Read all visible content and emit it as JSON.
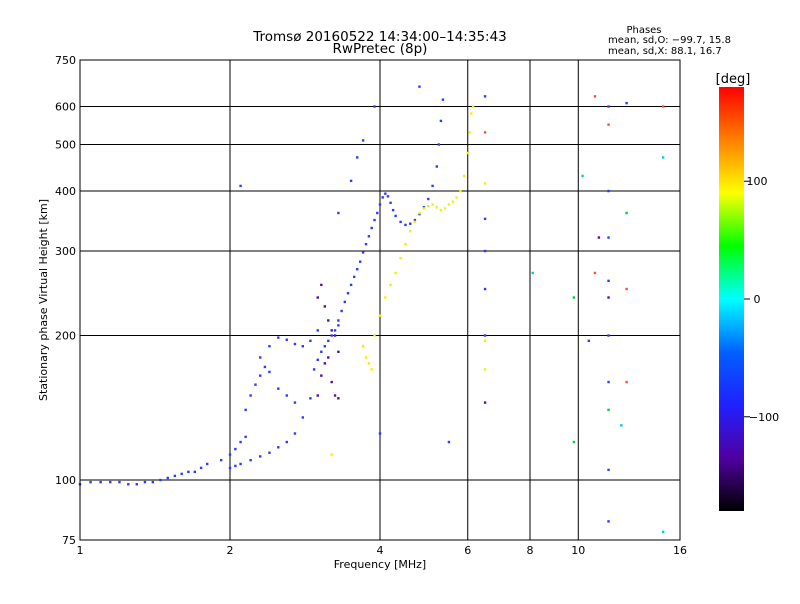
{
  "chart_data": {
    "type": "scatter",
    "title": "Tromsø 20160522 14:34:00–14:35:43",
    "subtitle": "RwPretec (8p)",
    "xlabel": "Frequency [MHz]",
    "ylabel": "Stationary phase Virtual Height [km]",
    "x_scale": "log",
    "y_scale": "log",
    "xlim": [
      1,
      16
    ],
    "ylim": [
      75,
      750
    ],
    "x_ticks": [
      1,
      2,
      4,
      6,
      8,
      10,
      16
    ],
    "y_ticks": [
      75,
      100,
      200,
      300,
      400,
      500,
      600,
      750
    ],
    "x_major_grid": [
      2,
      4,
      6
    ],
    "y_major_grid": [
      100,
      200,
      300,
      400,
      500,
      600
    ],
    "x_minor_grid": [
      8,
      10
    ],
    "grid": true,
    "stats": {
      "heading": "Phases",
      "line_o": "mean, sd,O: −99.7, 15.8",
      "line_x": "mean, sd,X:  88.1, 16.7"
    },
    "colorbar": {
      "label": "[deg]",
      "range": [
        -180,
        180
      ],
      "ticks": [
        100,
        0,
        -100
      ],
      "colors": [
        "#ff0000",
        "#ff8000",
        "#ffff00",
        "#00ff00",
        "#00ffff",
        "#0060ff",
        "#2020ff",
        "#5000a0",
        "#000000"
      ]
    },
    "series": [
      {
        "phase": -100,
        "color": "#2a3cff",
        "points": [
          [
            1.0,
            98
          ],
          [
            1.05,
            99
          ],
          [
            1.1,
            99
          ],
          [
            1.15,
            99
          ],
          [
            1.2,
            99
          ],
          [
            1.25,
            98
          ],
          [
            1.3,
            98
          ],
          [
            1.35,
            99
          ],
          [
            1.4,
            99
          ],
          [
            1.45,
            100
          ],
          [
            1.5,
            101
          ],
          [
            1.55,
            102
          ],
          [
            1.6,
            103
          ],
          [
            1.65,
            104
          ],
          [
            1.7,
            104
          ],
          [
            1.75,
            106
          ],
          [
            1.8,
            108
          ],
          [
            1.92,
            110
          ],
          [
            2.0,
            113
          ],
          [
            2.05,
            116
          ],
          [
            2.1,
            120
          ],
          [
            2.15,
            123
          ],
          [
            2.0,
            106
          ],
          [
            2.05,
            107
          ],
          [
            2.1,
            108
          ],
          [
            2.2,
            110
          ],
          [
            2.3,
            112
          ],
          [
            2.4,
            114
          ],
          [
            2.5,
            117
          ],
          [
            2.6,
            120
          ],
          [
            2.7,
            125
          ],
          [
            2.8,
            135
          ],
          [
            2.9,
            148
          ],
          [
            2.15,
            140
          ],
          [
            2.2,
            150
          ],
          [
            2.25,
            158
          ],
          [
            2.3,
            165
          ],
          [
            2.35,
            172
          ],
          [
            2.4,
            168
          ],
          [
            2.5,
            155
          ],
          [
            2.6,
            150
          ],
          [
            2.7,
            145
          ],
          [
            2.3,
            180
          ],
          [
            2.4,
            190
          ],
          [
            2.5,
            198
          ],
          [
            2.6,
            196
          ],
          [
            2.7,
            192
          ],
          [
            2.8,
            190
          ],
          [
            2.9,
            195
          ],
          [
            3.0,
            205
          ],
          [
            2.95,
            170
          ],
          [
            3.0,
            178
          ],
          [
            3.05,
            185
          ],
          [
            3.1,
            190
          ],
          [
            3.15,
            195
          ],
          [
            3.2,
            200
          ],
          [
            3.25,
            205
          ],
          [
            3.3,
            210
          ],
          [
            3.3,
            215
          ],
          [
            3.35,
            225
          ],
          [
            3.4,
            235
          ],
          [
            3.45,
            245
          ],
          [
            3.5,
            255
          ],
          [
            3.55,
            265
          ],
          [
            3.6,
            275
          ],
          [
            3.65,
            285
          ],
          [
            3.7,
            298
          ],
          [
            3.75,
            310
          ],
          [
            3.8,
            322
          ],
          [
            3.85,
            335
          ],
          [
            3.9,
            348
          ],
          [
            3.95,
            360
          ],
          [
            4.0,
            375
          ],
          [
            4.05,
            388
          ],
          [
            4.1,
            395
          ],
          [
            4.15,
            390
          ],
          [
            4.2,
            378
          ],
          [
            4.25,
            365
          ],
          [
            4.3,
            355
          ],
          [
            4.4,
            345
          ],
          [
            4.5,
            340
          ],
          [
            4.6,
            342
          ],
          [
            4.7,
            348
          ],
          [
            4.8,
            358
          ],
          [
            4.9,
            370
          ],
          [
            5.0,
            385
          ],
          [
            5.1,
            410
          ],
          [
            5.2,
            450
          ],
          [
            5.25,
            500
          ],
          [
            5.3,
            560
          ],
          [
            5.35,
            620
          ],
          [
            3.3,
            360
          ],
          [
            3.5,
            420
          ],
          [
            3.6,
            470
          ],
          [
            3.7,
            510
          ],
          [
            3.9,
            600
          ],
          [
            4.8,
            660
          ],
          [
            6.5,
            630
          ],
          [
            2.1,
            410
          ],
          [
            5.5,
            120
          ],
          [
            4.0,
            125
          ],
          [
            6.5,
            350
          ],
          [
            6.5,
            300
          ],
          [
            6.5,
            250
          ],
          [
            6.5,
            200
          ],
          [
            10.5,
            195
          ],
          [
            11.5,
            600
          ],
          [
            11.5,
            400
          ],
          [
            11.5,
            320
          ],
          [
            11.5,
            260
          ],
          [
            11.5,
            200
          ],
          [
            11.5,
            160
          ],
          [
            11.5,
            105
          ],
          [
            11.5,
            82
          ],
          [
            12.5,
            610
          ]
        ]
      },
      {
        "phase": -130,
        "color": "#5010a0",
        "points": [
          [
            3.0,
            150
          ],
          [
            3.05,
            165
          ],
          [
            3.1,
            175
          ],
          [
            3.15,
            180
          ],
          [
            3.2,
            160
          ],
          [
            3.25,
            150
          ],
          [
            3.3,
            148
          ],
          [
            3.0,
            240
          ],
          [
            3.05,
            255
          ],
          [
            3.1,
            230
          ],
          [
            3.15,
            215
          ],
          [
            3.2,
            205
          ],
          [
            3.25,
            200
          ],
          [
            3.3,
            185
          ],
          [
            6.5,
            145
          ],
          [
            11.0,
            320
          ],
          [
            11.5,
            240
          ]
        ]
      },
      {
        "phase": 85,
        "color": "#f0f000",
        "points": [
          [
            3.2,
            113
          ],
          [
            3.7,
            190
          ],
          [
            3.75,
            180
          ],
          [
            3.8,
            175
          ],
          [
            3.85,
            170
          ],
          [
            3.9,
            200
          ],
          [
            4.0,
            220
          ],
          [
            4.1,
            240
          ],
          [
            4.2,
            255
          ],
          [
            4.3,
            270
          ],
          [
            4.4,
            290
          ],
          [
            4.5,
            310
          ],
          [
            4.6,
            330
          ],
          [
            4.7,
            345
          ],
          [
            4.8,
            360
          ],
          [
            4.9,
            368
          ],
          [
            5.0,
            372
          ],
          [
            5.1,
            375
          ],
          [
            5.2,
            370
          ],
          [
            5.3,
            365
          ],
          [
            5.4,
            368
          ],
          [
            5.5,
            375
          ],
          [
            5.6,
            380
          ],
          [
            5.7,
            388
          ],
          [
            5.8,
            400
          ],
          [
            5.9,
            430
          ],
          [
            6.0,
            480
          ],
          [
            6.05,
            530
          ],
          [
            6.1,
            580
          ],
          [
            6.15,
            600
          ],
          [
            6.5,
            195
          ],
          [
            6.5,
            170
          ],
          [
            6.5,
            415
          ]
        ]
      },
      {
        "phase": 10,
        "color": "#00cc40",
        "points": [
          [
            9.8,
            240
          ],
          [
            9.8,
            120
          ],
          [
            11.5,
            140
          ],
          [
            12.5,
            360
          ]
        ]
      },
      {
        "phase": -20,
        "color": "#00ccdd",
        "points": [
          [
            8.1,
            270
          ],
          [
            10.2,
            430
          ],
          [
            12.2,
            130
          ],
          [
            14.8,
            470
          ],
          [
            14.8,
            78
          ]
        ]
      },
      {
        "phase": 150,
        "color": "#ff5020",
        "points": [
          [
            10.8,
            630
          ],
          [
            11.5,
            550
          ],
          [
            12.5,
            160
          ],
          [
            12.5,
            250
          ],
          [
            14.8,
            600
          ],
          [
            6.5,
            530
          ],
          [
            10.8,
            270
          ]
        ]
      }
    ]
  }
}
